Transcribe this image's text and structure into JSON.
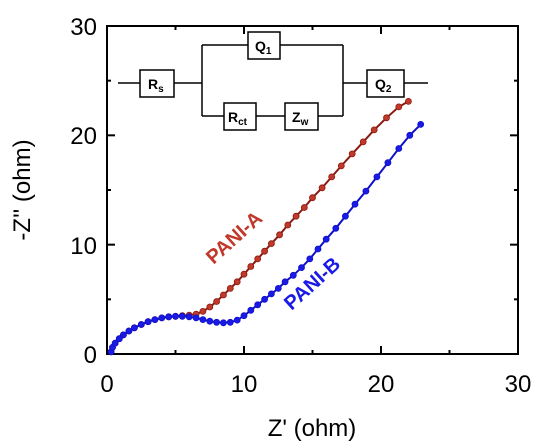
{
  "chart_data": {
    "type": "scatter",
    "xlabel": "Z' (ohm)",
    "ylabel": "-Z'' (ohm)",
    "xlim": [
      0,
      30
    ],
    "ylim": [
      0,
      30
    ],
    "xticks": [
      "0",
      "10",
      "20",
      "30"
    ],
    "yticks": [
      "0",
      "10",
      "20",
      "30"
    ],
    "grid": false,
    "legend": "none",
    "colors": {
      "PANI-A": "#c0392b",
      "PANI-A_line": "#8b1a10",
      "PANI-B": "#1a1ae6",
      "PANI-B_line": "#1010c8"
    },
    "series": [
      {
        "name": "PANI-A",
        "points": [
          [
            0.3,
            0.2
          ],
          [
            0.4,
            0.6
          ],
          [
            0.6,
            1.0
          ],
          [
            0.9,
            1.4
          ],
          [
            1.2,
            1.75
          ],
          [
            1.6,
            2.1
          ],
          [
            2.0,
            2.4
          ],
          [
            2.5,
            2.7
          ],
          [
            3.0,
            2.95
          ],
          [
            3.5,
            3.15
          ],
          [
            4.0,
            3.3
          ],
          [
            4.5,
            3.4
          ],
          [
            5.0,
            3.45
          ],
          [
            5.5,
            3.5
          ],
          [
            6.0,
            3.55
          ],
          [
            6.5,
            3.65
          ],
          [
            7.0,
            3.9
          ],
          [
            7.5,
            4.3
          ],
          [
            8.0,
            4.8
          ],
          [
            8.5,
            5.4
          ],
          [
            9.0,
            6.0
          ],
          [
            9.5,
            6.6
          ],
          [
            10.0,
            7.3
          ],
          [
            10.5,
            8.0
          ],
          [
            11.0,
            8.7
          ],
          [
            11.5,
            9.4
          ],
          [
            12.0,
            10.1
          ],
          [
            12.6,
            10.9
          ],
          [
            13.2,
            11.8
          ],
          [
            13.8,
            12.6
          ],
          [
            14.4,
            13.4
          ],
          [
            15.0,
            14.3
          ],
          [
            15.7,
            15.2
          ],
          [
            16.4,
            16.2
          ],
          [
            17.1,
            17.2
          ],
          [
            17.9,
            18.3
          ],
          [
            18.7,
            19.4
          ],
          [
            19.5,
            20.5
          ],
          [
            20.4,
            21.6
          ],
          [
            21.3,
            22.6
          ],
          [
            22.0,
            23.1
          ]
        ]
      },
      {
        "name": "PANI-B",
        "points": [
          [
            0.3,
            0.2
          ],
          [
            0.4,
            0.6
          ],
          [
            0.6,
            1.0
          ],
          [
            0.9,
            1.4
          ],
          [
            1.2,
            1.75
          ],
          [
            1.6,
            2.1
          ],
          [
            2.0,
            2.4
          ],
          [
            2.5,
            2.7
          ],
          [
            3.0,
            2.95
          ],
          [
            3.5,
            3.15
          ],
          [
            4.0,
            3.3
          ],
          [
            4.5,
            3.4
          ],
          [
            5.0,
            3.45
          ],
          [
            5.5,
            3.45
          ],
          [
            6.0,
            3.4
          ],
          [
            6.5,
            3.3
          ],
          [
            7.0,
            3.15
          ],
          [
            7.5,
            3.0
          ],
          [
            8.0,
            2.9
          ],
          [
            8.5,
            2.85
          ],
          [
            9.0,
            2.9
          ],
          [
            9.5,
            3.1
          ],
          [
            10.0,
            3.5
          ],
          [
            10.5,
            4.0
          ],
          [
            11.0,
            4.5
          ],
          [
            11.5,
            5.0
          ],
          [
            12.0,
            5.5
          ],
          [
            12.5,
            6.0
          ],
          [
            13.0,
            6.6
          ],
          [
            13.6,
            7.2
          ],
          [
            14.2,
            7.9
          ],
          [
            14.8,
            8.7
          ],
          [
            15.4,
            9.6
          ],
          [
            16.0,
            10.5
          ],
          [
            16.7,
            11.5
          ],
          [
            17.4,
            12.6
          ],
          [
            18.1,
            13.7
          ],
          [
            18.9,
            14.9
          ],
          [
            19.7,
            16.2
          ],
          [
            20.5,
            17.5
          ],
          [
            21.3,
            18.8
          ],
          [
            22.1,
            20.0
          ],
          [
            22.9,
            21.0
          ]
        ]
      }
    ],
    "annotations": [
      {
        "text": "PANI-A",
        "series": "PANI-A",
        "x": 9.6,
        "y": 10.2,
        "rotate_deg": -42
      },
      {
        "text": "PANI-B",
        "series": "PANI-B",
        "x": 15.3,
        "y": 6.0,
        "rotate_deg": -42
      }
    ],
    "inset_circuit": {
      "elements": [
        {
          "label": "R",
          "sub": "s"
        },
        {
          "label": "Q",
          "sub": "1"
        },
        {
          "label": "R",
          "sub": "ct"
        },
        {
          "label": "Z",
          "sub": "w"
        },
        {
          "label": "Q",
          "sub": "2"
        }
      ]
    }
  }
}
